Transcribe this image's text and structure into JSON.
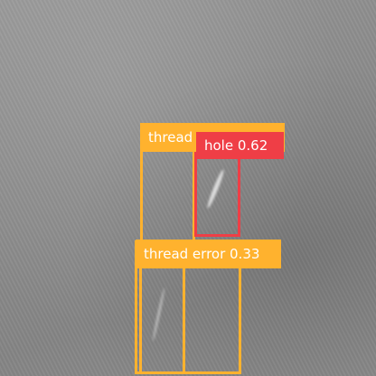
{
  "detections": [
    {
      "label": "thread",
      "color": "#ffb22e"
    },
    {
      "label": "hole 0.62",
      "color": "#ef3e46"
    },
    {
      "label": "thread error 0.33",
      "color": "#ffb22e"
    }
  ]
}
